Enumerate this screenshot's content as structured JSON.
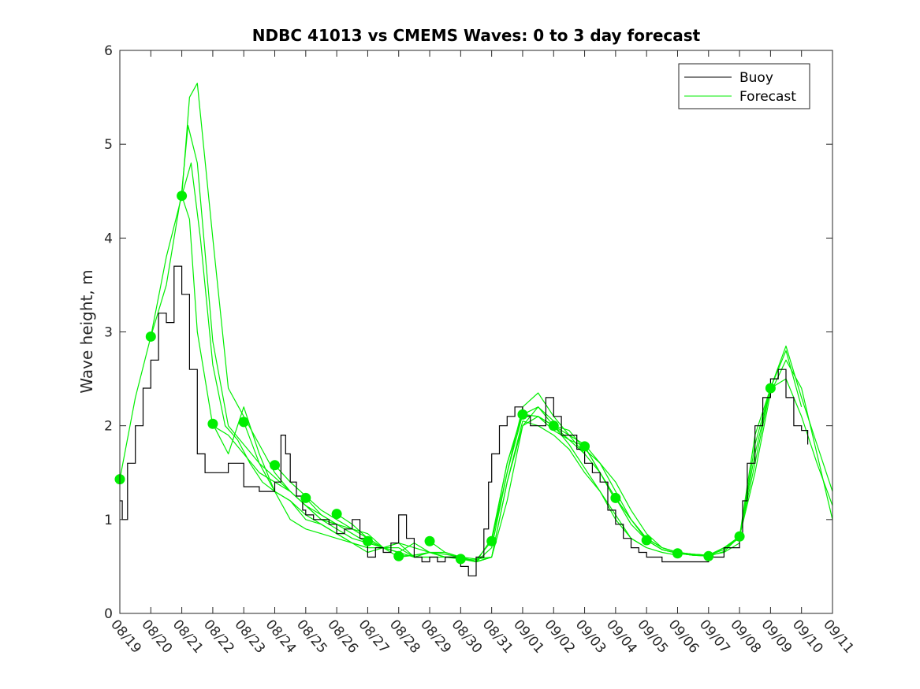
{
  "chart_data": {
    "type": "line",
    "title": "NDBC 41013 vs CMEMS Waves: 0 to 3 day forecast",
    "xlabel": "",
    "ylabel": "Wave height, m",
    "x_tick_labels": [
      "08/19",
      "08/20",
      "08/21",
      "08/22",
      "08/23",
      "08/24",
      "08/25",
      "08/26",
      "08/27",
      "08/28",
      "08/29",
      "08/30",
      "08/31",
      "09/01",
      "09/02",
      "09/03",
      "09/04",
      "09/05",
      "09/06",
      "09/07",
      "09/08",
      "09/09",
      "09/10",
      "09/11"
    ],
    "xlim": [
      0,
      23
    ],
    "ylim": [
      0,
      6
    ],
    "y_ticks": [
      0,
      1,
      2,
      3,
      4,
      5,
      6
    ],
    "legend": {
      "placement": "top-right",
      "entries": [
        {
          "label": "Buoy",
          "color": "#000000"
        },
        {
          "label": "Forecast",
          "color": "#00ee00"
        }
      ]
    },
    "colors": {
      "buoy": "#000000",
      "forecast": "#00ee00",
      "marker": "#00ee00"
    },
    "buoy": {
      "x": [
        0,
        0.08,
        0.25,
        0.5,
        0.75,
        1.0,
        1.25,
        1.5,
        1.75,
        2.0,
        2.25,
        2.5,
        2.75,
        3.0,
        3.25,
        3.5,
        4.0,
        4.5,
        5.0,
        5.2,
        5.35,
        5.5,
        5.7,
        5.9,
        6.0,
        6.25,
        6.5,
        6.75,
        7.0,
        7.25,
        7.5,
        7.75,
        8.0,
        8.25,
        8.5,
        8.75,
        9.0,
        9.25,
        9.5,
        9.75,
        10.0,
        10.25,
        10.5,
        10.75,
        11.0,
        11.25,
        11.5,
        11.75,
        11.9,
        12.0,
        12.25,
        12.5,
        12.75,
        13.0,
        13.25,
        13.5,
        13.75,
        14.0,
        14.25,
        14.5,
        14.75,
        15.0,
        15.25,
        15.5,
        15.75,
        16.0,
        16.25,
        16.5,
        16.75,
        17.0,
        17.5,
        18.0,
        18.5,
        19.0,
        19.5,
        20.0,
        20.1,
        20.25,
        20.5,
        20.75,
        21.0,
        21.25,
        21.5,
        21.75,
        22.0,
        22.2
      ],
      "y": [
        1.2,
        1.0,
        1.6,
        2.0,
        2.4,
        2.7,
        3.2,
        3.1,
        3.7,
        3.4,
        2.6,
        1.7,
        1.5,
        1.5,
        1.5,
        1.6,
        1.35,
        1.3,
        1.4,
        1.9,
        1.7,
        1.4,
        1.25,
        1.1,
        1.05,
        1.0,
        1.0,
        0.95,
        0.85,
        0.9,
        1.0,
        0.8,
        0.6,
        0.7,
        0.65,
        0.75,
        1.05,
        0.8,
        0.6,
        0.55,
        0.6,
        0.55,
        0.6,
        0.6,
        0.5,
        0.4,
        0.6,
        0.9,
        1.4,
        1.7,
        2.0,
        2.1,
        2.2,
        2.1,
        2.0,
        2.0,
        2.3,
        2.1,
        1.9,
        1.9,
        1.75,
        1.6,
        1.5,
        1.4,
        1.1,
        0.95,
        0.8,
        0.7,
        0.65,
        0.6,
        0.55,
        0.55,
        0.55,
        0.6,
        0.7,
        0.8,
        1.2,
        1.6,
        2.0,
        2.3,
        2.5,
        2.6,
        2.3,
        2.0,
        1.95,
        1.8
      ]
    },
    "forecasts": [
      {
        "x": [
          0,
          0.5,
          1,
          1.5,
          2,
          2.25,
          2.5,
          3,
          3.5,
          4,
          4.5,
          5,
          5.5,
          6,
          6.5,
          7
        ],
        "y": [
          1.43,
          2.3,
          2.95,
          3.8,
          4.45,
          4.2,
          3.0,
          2.0,
          1.9,
          1.7,
          1.5,
          1.4,
          1.3,
          1.15,
          1.0,
          0.95
        ]
      },
      {
        "x": [
          1,
          1.5,
          2,
          2.2,
          2.5,
          3,
          3.5,
          4,
          4.5,
          5,
          5.5,
          6,
          6.5,
          7,
          7.5,
          8
        ],
        "y": [
          2.95,
          3.5,
          4.5,
          5.2,
          4.8,
          2.9,
          2.0,
          1.8,
          1.6,
          1.45,
          1.3,
          1.15,
          1.05,
          0.95,
          0.85,
          0.75
        ]
      },
      {
        "x": [
          2,
          2.25,
          2.5,
          3,
          3.5,
          4,
          4.5,
          5,
          5.5,
          6,
          6.5,
          7,
          7.5,
          8,
          8.5,
          9
        ],
        "y": [
          4.45,
          5.5,
          5.65,
          4.0,
          2.4,
          2.1,
          1.8,
          1.5,
          1.3,
          1.15,
          1.0,
          0.9,
          0.8,
          0.75,
          0.7,
          0.65
        ]
      },
      {
        "x": [
          2,
          2.3,
          2.6,
          3,
          3.4,
          3.8,
          4.2,
          4.6,
          5,
          5.5,
          6,
          6.5,
          7,
          7.5,
          8
        ],
        "y": [
          4.45,
          4.8,
          4.0,
          2.65,
          2.0,
          1.85,
          1.6,
          1.4,
          1.3,
          1.2,
          1.0,
          0.95,
          0.85,
          0.75,
          0.7
        ]
      },
      {
        "x": [
          3,
          3.5,
          4,
          4.5,
          5,
          5.5,
          6,
          6.5,
          7,
          7.5,
          8,
          8.5,
          9,
          9.5,
          10
        ],
        "y": [
          2.02,
          1.7,
          2.2,
          1.7,
          1.3,
          1.2,
          1.05,
          0.95,
          0.85,
          0.75,
          0.65,
          0.7,
          0.75,
          0.6,
          0.6
        ]
      },
      {
        "x": [
          4,
          4.5,
          5,
          5.5,
          6,
          6.5,
          7,
          7.5,
          8,
          8.5,
          9,
          9.5,
          10,
          10.5,
          11
        ],
        "y": [
          2.04,
          1.6,
          1.3,
          1.0,
          0.9,
          0.85,
          0.8,
          0.75,
          0.7,
          0.7,
          0.65,
          0.6,
          0.6,
          0.6,
          0.6
        ]
      },
      {
        "x": [
          5,
          5.5,
          6,
          6.5,
          7,
          7.5,
          8,
          8.5,
          9,
          9.5,
          10,
          10.5,
          11,
          11.5,
          12
        ],
        "y": [
          1.58,
          1.4,
          1.25,
          1.1,
          1.0,
          0.9,
          0.8,
          0.7,
          0.75,
          0.7,
          0.65,
          0.6,
          0.6,
          0.55,
          0.6
        ]
      },
      {
        "x": [
          6,
          6.5,
          7,
          7.5,
          8,
          8.5,
          9,
          9.5,
          10,
          10.5,
          11,
          11.5,
          12,
          12.5,
          13
        ],
        "y": [
          1.23,
          1.05,
          0.95,
          0.9,
          0.85,
          0.7,
          0.65,
          0.75,
          0.65,
          0.6,
          0.6,
          0.55,
          0.8,
          1.6,
          2.15
        ]
      },
      {
        "x": [
          7,
          7.5,
          8,
          8.5,
          9,
          9.5,
          10,
          10.5,
          11,
          11.5,
          12,
          12.5,
          13,
          13.5,
          14
        ],
        "y": [
          1.06,
          0.95,
          0.8,
          0.7,
          0.7,
          0.6,
          0.65,
          0.65,
          0.6,
          0.55,
          0.6,
          1.4,
          2.0,
          2.2,
          2.05
        ]
      },
      {
        "x": [
          8,
          8.5,
          9,
          9.5,
          10,
          10.5,
          11,
          11.5,
          12,
          12.5,
          13,
          13.5,
          14,
          14.5,
          15
        ],
        "y": [
          0.77,
          0.7,
          0.6,
          0.62,
          0.65,
          0.6,
          0.58,
          0.55,
          0.7,
          1.5,
          2.2,
          2.35,
          2.1,
          1.9,
          1.7
        ]
      },
      {
        "x": [
          9,
          9.5,
          10,
          10.5,
          11,
          11.5,
          12,
          12.5,
          13,
          13.5,
          14,
          14.5,
          15,
          15.5,
          16
        ],
        "y": [
          0.61,
          0.62,
          0.65,
          0.63,
          0.6,
          0.58,
          0.6,
          1.2,
          2.0,
          2.1,
          1.95,
          1.85,
          1.7,
          1.5,
          1.2
        ]
      },
      {
        "x": [
          10,
          10.5,
          11,
          11.5,
          12,
          12.5,
          13,
          13.5,
          14,
          14.5,
          15,
          15.5,
          16,
          16.5,
          17
        ],
        "y": [
          0.77,
          0.65,
          0.6,
          0.55,
          0.6,
          1.4,
          2.05,
          2.0,
          1.9,
          1.75,
          1.5,
          1.3,
          1.0,
          0.8,
          0.7
        ]
      },
      {
        "x": [
          11,
          11.5,
          12,
          12.5,
          13,
          13.5,
          14,
          14.5,
          15,
          15.5,
          16,
          16.5,
          17,
          17.5,
          18
        ],
        "y": [
          0.58,
          0.57,
          0.77,
          1.6,
          2.12,
          2.1,
          2.0,
          1.8,
          1.55,
          1.3,
          1.05,
          0.8,
          0.7,
          0.65,
          0.62
        ]
      },
      {
        "x": [
          12,
          12.5,
          13,
          13.5,
          14,
          14.5,
          15,
          15.5,
          16,
          16.5,
          17,
          17.5,
          18,
          18.5,
          19
        ],
        "y": [
          0.77,
          1.5,
          2.12,
          2.2,
          2.0,
          1.95,
          1.75,
          1.6,
          1.3,
          1.0,
          0.8,
          0.7,
          0.65,
          0.63,
          0.62
        ]
      },
      {
        "x": [
          13,
          13.5,
          14,
          14.5,
          15,
          15.5,
          16,
          16.5,
          17,
          17.5,
          18,
          18.5,
          19,
          19.5,
          20
        ],
        "y": [
          2.12,
          2.1,
          2.0,
          1.9,
          1.8,
          1.6,
          1.4,
          1.1,
          0.85,
          0.7,
          0.65,
          0.63,
          0.62,
          0.65,
          0.75
        ]
      },
      {
        "x": [
          14,
          14.5,
          15,
          15.5,
          16,
          16.5,
          17,
          17.5,
          18,
          18.5,
          19,
          19.5,
          20,
          20.5,
          21
        ],
        "y": [
          2.0,
          1.85,
          1.78,
          1.5,
          1.23,
          1.0,
          0.8,
          0.7,
          0.65,
          0.63,
          0.62,
          0.7,
          0.8,
          1.8,
          2.4
        ]
      },
      {
        "x": [
          15,
          15.5,
          16,
          16.5,
          17,
          17.5,
          18,
          18.5,
          19,
          19.5,
          20,
          20.5,
          21,
          21.5,
          22
        ],
        "y": [
          1.78,
          1.5,
          1.23,
          0.95,
          0.78,
          0.68,
          0.64,
          0.62,
          0.62,
          0.68,
          0.82,
          1.7,
          2.4,
          2.8,
          2.2
        ]
      },
      {
        "x": [
          16,
          16.5,
          17,
          17.5,
          18,
          18.5,
          19,
          19.5,
          20,
          20.5,
          21,
          21.5,
          22,
          22.5,
          23
        ],
        "y": [
          1.23,
          1.0,
          0.78,
          0.68,
          0.64,
          0.62,
          0.61,
          0.66,
          0.82,
          1.6,
          2.4,
          2.85,
          2.3,
          1.8,
          1.3
        ]
      },
      {
        "x": [
          17,
          17.5,
          18,
          18.5,
          19,
          19.5,
          20,
          20.5,
          21,
          21.5,
          22,
          22.5,
          23
        ],
        "y": [
          0.78,
          0.68,
          0.64,
          0.63,
          0.62,
          0.7,
          0.82,
          1.5,
          2.35,
          2.7,
          2.4,
          1.7,
          1.0
        ]
      },
      {
        "x": [
          18,
          18.5,
          19,
          19.5,
          20,
          20.5,
          21,
          21.5,
          22,
          22.5,
          23
        ],
        "y": [
          0.64,
          0.62,
          0.61,
          0.7,
          0.82,
          1.9,
          2.4,
          2.5,
          2.1,
          1.6,
          1.15
        ]
      }
    ],
    "markers": {
      "x": [
        0,
        1,
        2,
        3,
        4,
        5,
        6,
        7,
        8,
        9,
        10,
        11,
        12,
        13,
        14,
        15,
        16,
        17,
        18,
        19,
        20,
        21
      ],
      "y": [
        1.43,
        2.95,
        4.45,
        2.02,
        2.04,
        1.58,
        1.23,
        1.06,
        0.77,
        0.61,
        0.77,
        0.58,
        0.77,
        2.12,
        2.0,
        1.78,
        1.23,
        0.78,
        0.64,
        0.61,
        0.82,
        2.4
      ]
    }
  }
}
